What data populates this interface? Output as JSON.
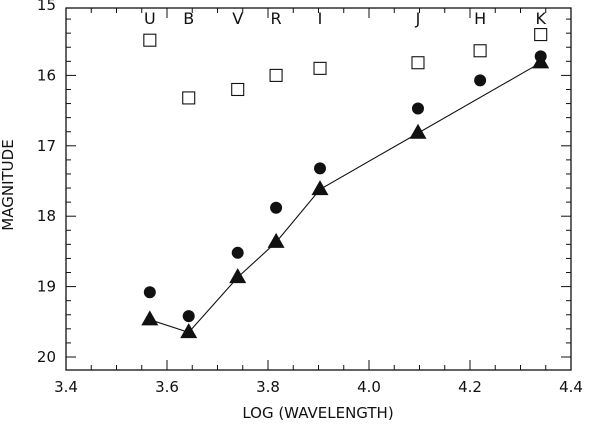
{
  "chart_data": {
    "type": "scatter",
    "title": "",
    "xlabel": "LOG (WAVELENGTH)",
    "ylabel": "MAGNITUDE",
    "xlim": [
      3.4,
      4.4
    ],
    "ylim": [
      20.0,
      15.0
    ],
    "y_inverted": true,
    "grid": false,
    "x_ticks": [
      {
        "value": 3.4,
        "label": "3.4"
      },
      {
        "value": 3.6,
        "label": "3.6"
      },
      {
        "value": 3.8,
        "label": "3.8"
      },
      {
        "value": 4.0,
        "label": "4.0"
      },
      {
        "value": 4.2,
        "label": "4.2"
      },
      {
        "value": 4.4,
        "label": "4.4"
      }
    ],
    "y_ticks": [
      {
        "value": 15,
        "label": "15"
      },
      {
        "value": 16,
        "label": "16"
      },
      {
        "value": 17,
        "label": "17"
      },
      {
        "value": 18,
        "label": "18"
      },
      {
        "value": 19,
        "label": "19"
      },
      {
        "value": 20,
        "label": "20"
      }
    ],
    "band_labels": [
      {
        "label": "U",
        "x": 3.566
      },
      {
        "label": "B",
        "x": 3.643
      },
      {
        "label": "V",
        "x": 3.74
      },
      {
        "label": "R",
        "x": 3.816
      },
      {
        "label": "I",
        "x": 3.903
      },
      {
        "label": "J",
        "x": 4.097
      },
      {
        "label": "H",
        "x": 4.22
      },
      {
        "label": "K",
        "x": 4.34
      }
    ],
    "series": [
      {
        "marker": "open-square",
        "color": "#111111",
        "connected": false,
        "points": [
          {
            "x": 3.566,
            "y": 15.5
          },
          {
            "x": 3.643,
            "y": 16.32
          },
          {
            "x": 3.74,
            "y": 16.2
          },
          {
            "x": 3.816,
            "y": 16.0
          },
          {
            "x": 3.903,
            "y": 15.9
          },
          {
            "x": 4.097,
            "y": 15.82
          },
          {
            "x": 4.22,
            "y": 15.65
          },
          {
            "x": 4.34,
            "y": 15.42
          }
        ]
      },
      {
        "marker": "filled-circle",
        "color": "#111111",
        "connected": false,
        "points": [
          {
            "x": 3.566,
            "y": 19.08
          },
          {
            "x": 3.643,
            "y": 19.42
          },
          {
            "x": 3.74,
            "y": 18.52
          },
          {
            "x": 3.816,
            "y": 17.88
          },
          {
            "x": 3.903,
            "y": 17.32
          },
          {
            "x": 4.097,
            "y": 16.47
          },
          {
            "x": 4.22,
            "y": 16.07
          },
          {
            "x": 4.34,
            "y": 15.73
          }
        ]
      },
      {
        "marker": "filled-triangle",
        "color": "#111111",
        "connected": true,
        "points": [
          {
            "x": 3.566,
            "y": 19.47
          },
          {
            "x": 3.643,
            "y": 19.65
          },
          {
            "x": 3.74,
            "y": 18.87
          },
          {
            "x": 3.816,
            "y": 18.37
          },
          {
            "x": 3.903,
            "y": 17.62
          },
          {
            "x": 4.097,
            "y": 16.82
          },
          {
            "x": 4.34,
            "y": 15.82
          }
        ]
      }
    ]
  }
}
